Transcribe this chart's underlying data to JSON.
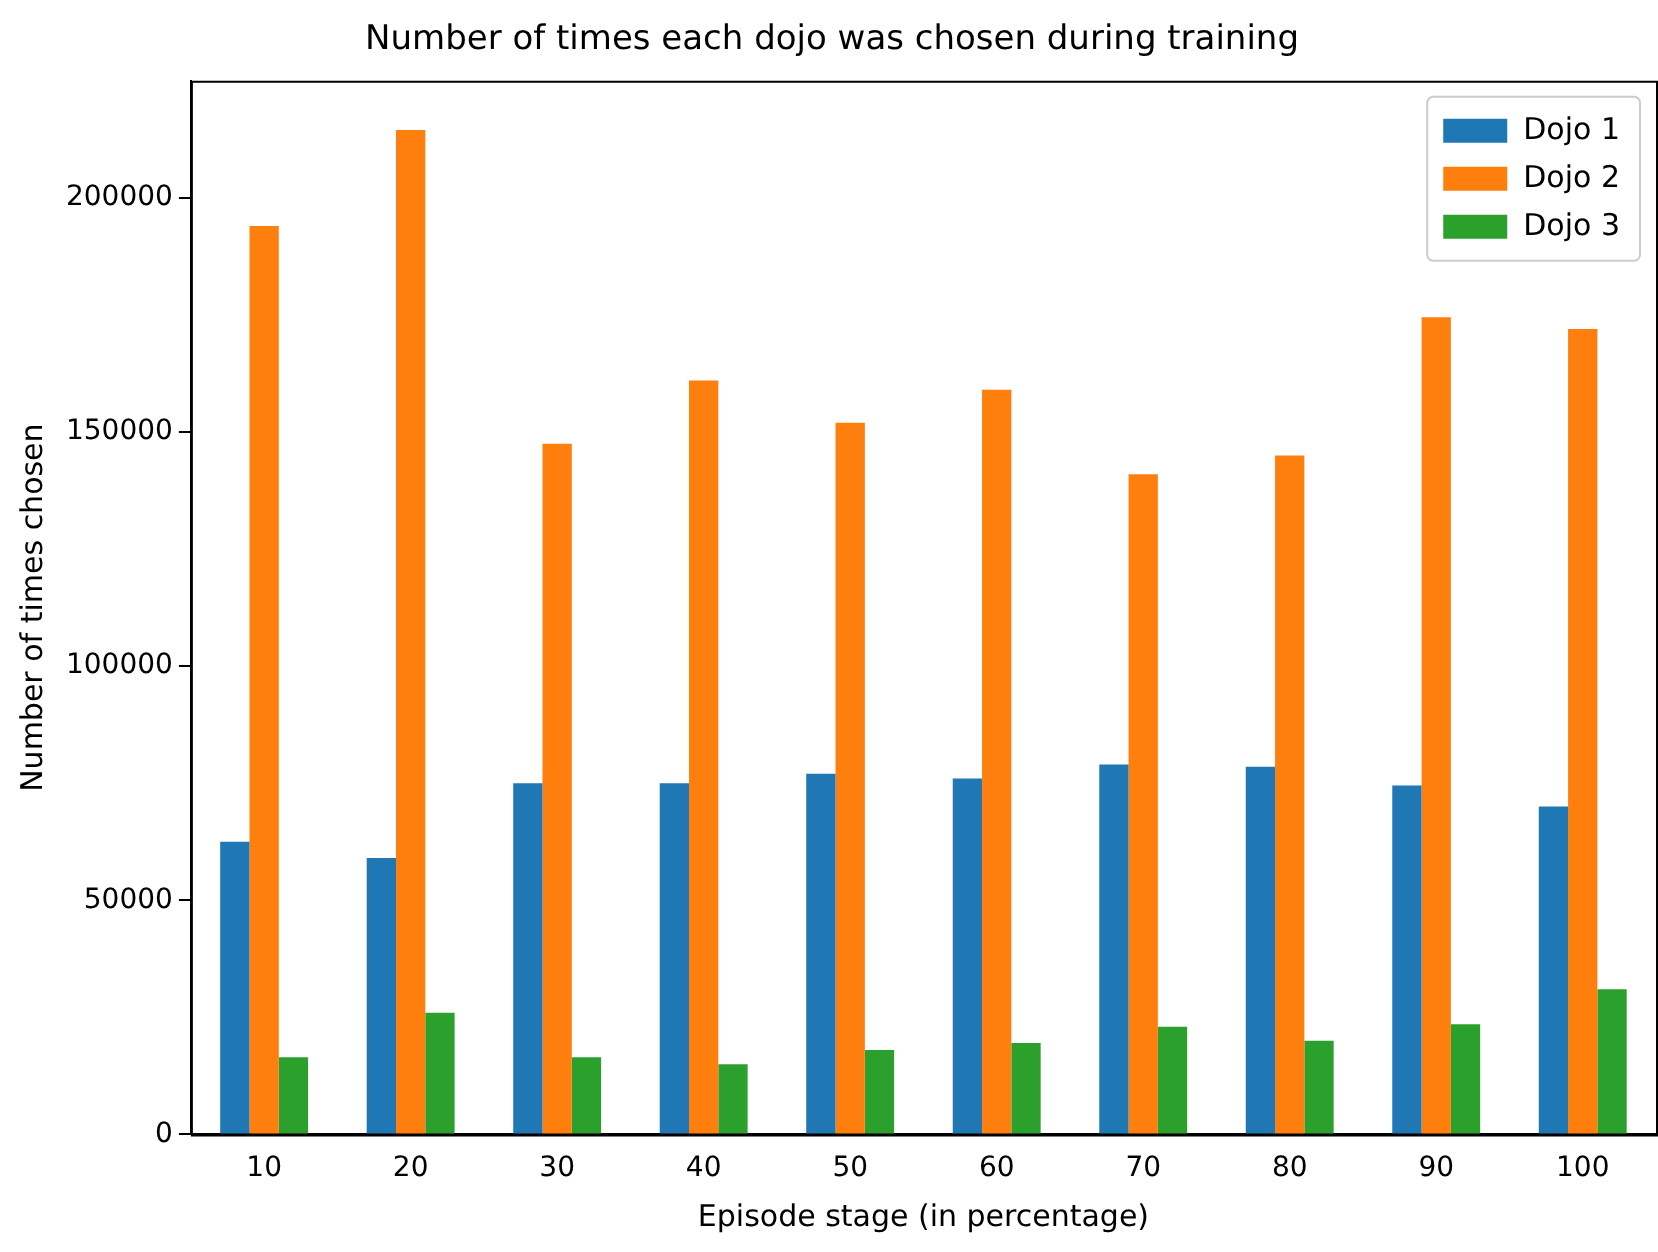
{
  "chart_data": {
    "type": "bar",
    "title": "Number of times each dojo was chosen during training",
    "xlabel": "Episode stage (in percentage)",
    "ylabel": "Number of times chosen",
    "categories": [
      "10",
      "20",
      "30",
      "40",
      "50",
      "60",
      "70",
      "80",
      "90",
      "100"
    ],
    "series": [
      {
        "name": "Dojo 1",
        "color": "#1f77b4",
        "values": [
          62500,
          59000,
          75000,
          75000,
          77000,
          76000,
          79000,
          78500,
          74500,
          70000
        ]
      },
      {
        "name": "Dojo 2",
        "color": "#ff7f0e",
        "values": [
          194000,
          214500,
          147500,
          161000,
          152000,
          159000,
          141000,
          145000,
          174500,
          172000
        ]
      },
      {
        "name": "Dojo 3",
        "color": "#2ca02c",
        "values": [
          16500,
          26000,
          16500,
          15000,
          18000,
          19500,
          23000,
          20000,
          23500,
          31000
        ]
      }
    ],
    "ylim": [
      0,
      225000
    ],
    "yticks": [
      0,
      50000,
      100000,
      150000,
      200000
    ],
    "grid": false,
    "legend": "top right"
  }
}
